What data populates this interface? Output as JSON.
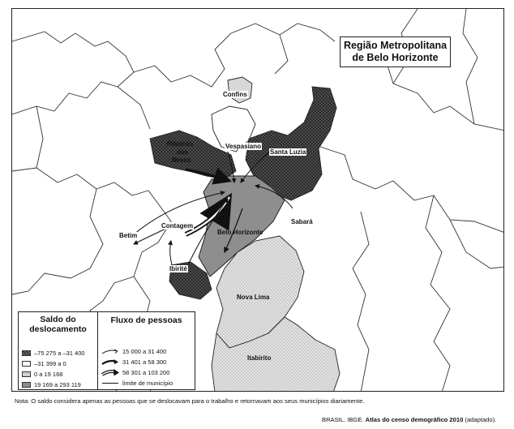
{
  "title_line1": "Região Metropolitana",
  "title_line2": "de Belo Horizonte",
  "places": {
    "confins": "Confins",
    "ribeirao_1": "Ribeirão",
    "ribeirao_2": "das",
    "ribeirao_3": "Neves",
    "vespasiano": "Vespasiano",
    "santa_luzia": "Santa Luzia",
    "sabara": "Sabará",
    "betim": "Betim",
    "contagem": "Contagem",
    "belo_horizonte": "Belo Horizonte",
    "ibirite": "Ibirité",
    "nova_lima": "Nova Lima",
    "itabirito": "Itabirito"
  },
  "legend": {
    "saldo_title_1": "Saldo do",
    "saldo_title_2": "deslocamento",
    "saldo_items": [
      {
        "label": "–75 275 a –31 400",
        "fill": "#4a4a4a",
        "pattern": "hatched"
      },
      {
        "label": "–31 399 a 0",
        "fill": "#ffffff",
        "pattern": "solid"
      },
      {
        "label": "0 a 19 168",
        "fill": "#d6d6d6",
        "pattern": "dotted"
      },
      {
        "label": "19 169 a 293 119",
        "fill": "#8e8e8e",
        "pattern": "solid"
      }
    ],
    "fluxo_title": "Fluxo de pessoas",
    "fluxo_items": [
      {
        "label": "15 000 a 31 400",
        "style": "thin"
      },
      {
        "label": "31 401 a 58 300",
        "style": "medium"
      },
      {
        "label": "58 301 a 103 200",
        "style": "thick"
      },
      {
        "label": "limite de município",
        "style": "line"
      }
    ]
  },
  "note": "Nota: O saldo considera apenas as pessoas que se deslocavam para o trabalho e retornavam aos seus municípios diariamente.",
  "source_prefix": "BRASIL. IBGE. ",
  "source_title": "Atlas do censo demográfico 2010",
  "source_suffix": " (adaptado).",
  "colors": {
    "dark": "#4a4a4a",
    "white": "#ffffff",
    "light": "#d6d6d6",
    "mid": "#8e8e8e",
    "border": "#222222"
  }
}
